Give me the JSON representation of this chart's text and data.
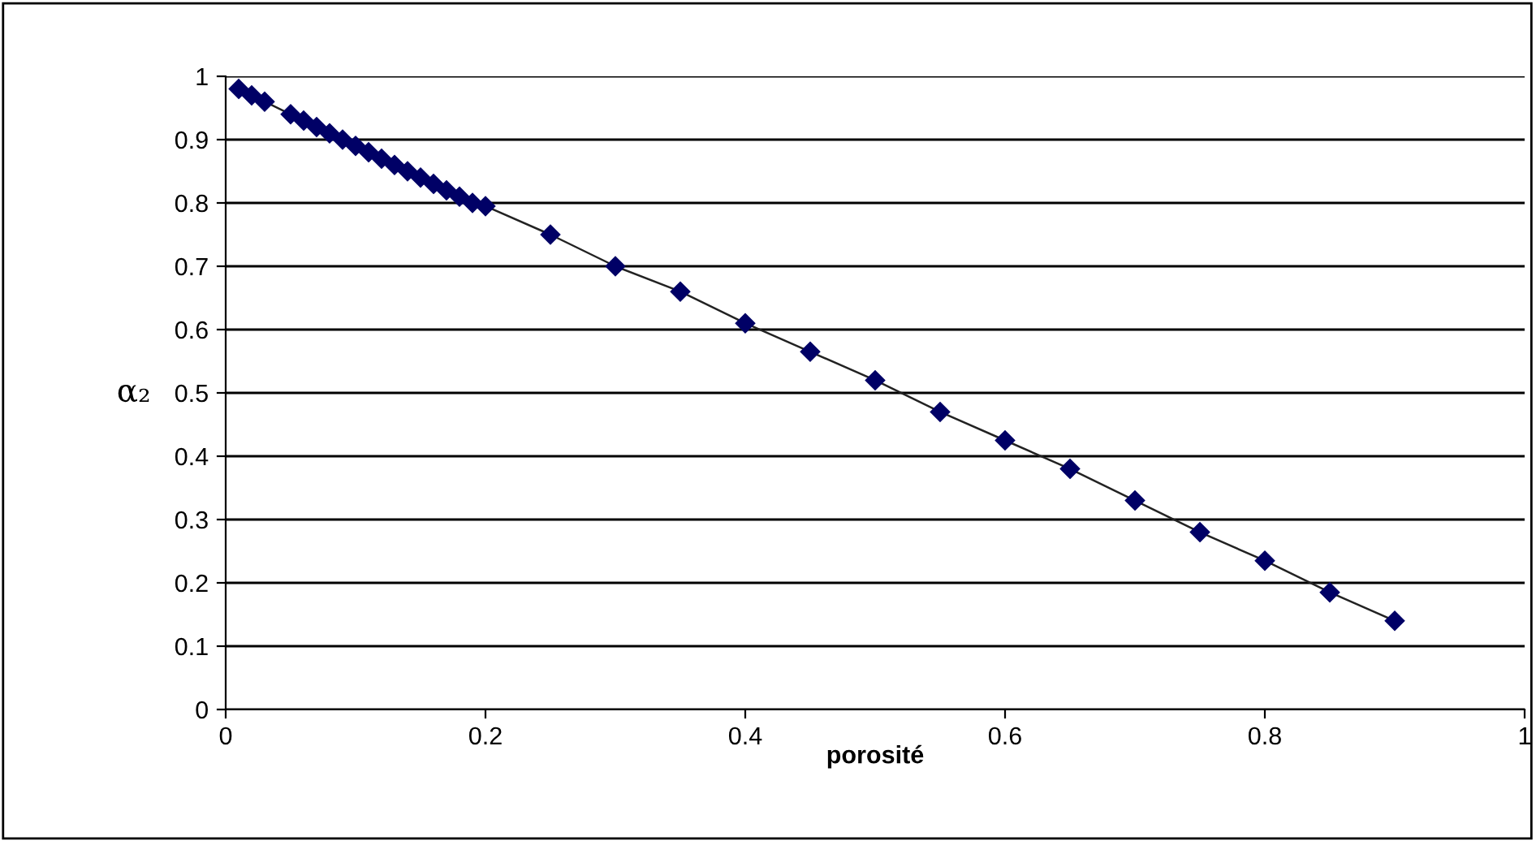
{
  "chart_data": {
    "type": "line",
    "xlabel": "porosité",
    "ylabel": "α₂",
    "x": [
      0.01,
      0.02,
      0.03,
      0.05,
      0.06,
      0.07,
      0.08,
      0.09,
      0.1,
      0.11,
      0.12,
      0.13,
      0.14,
      0.15,
      0.16,
      0.17,
      0.18,
      0.19,
      0.2,
      0.25,
      0.3,
      0.35,
      0.4,
      0.45,
      0.5,
      0.55,
      0.6,
      0.65,
      0.7,
      0.75,
      0.8,
      0.85,
      0.9
    ],
    "series": [
      {
        "color": "#000066",
        "values": [
          0.98,
          0.97,
          0.96,
          0.94,
          0.93,
          0.92,
          0.91,
          0.9,
          0.89,
          0.88,
          0.87,
          0.86,
          0.85,
          0.84,
          0.83,
          0.82,
          0.81,
          0.8,
          0.795,
          0.75,
          0.7,
          0.66,
          0.61,
          0.565,
          0.52,
          0.47,
          0.425,
          0.38,
          0.33,
          0.28,
          0.235,
          0.185,
          0.14
        ]
      }
    ],
    "xlim": [
      0,
      1
    ],
    "xticks": [
      0,
      0.2,
      0.4,
      0.6,
      0.8,
      1
    ],
    "ylim": [
      0,
      1
    ],
    "yticks": [
      0,
      0.1,
      0.2,
      0.3,
      0.4,
      0.5,
      0.6,
      0.7,
      0.8,
      0.9,
      1
    ],
    "grid": "y",
    "marker": "diamond",
    "line_style": "solid"
  }
}
